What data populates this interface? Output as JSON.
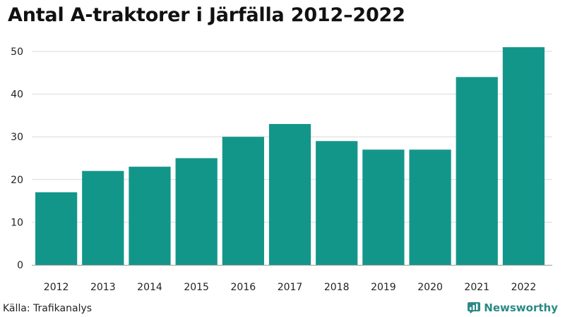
{
  "title": "Antal A-traktorer i Järfälla 2012–2022",
  "source": "Källa: Trafikanalys",
  "brand": "Newsworthy",
  "colors": {
    "bar": "#13968a",
    "grid": "#d9d9d9",
    "axis": "#9a9a9a",
    "brand": "#2a8a84"
  },
  "chart_data": {
    "type": "bar",
    "categories": [
      "2012",
      "2013",
      "2014",
      "2015",
      "2016",
      "2017",
      "2018",
      "2019",
      "2020",
      "2021",
      "2022"
    ],
    "values": [
      17,
      22,
      23,
      25,
      30,
      33,
      29,
      27,
      27,
      44,
      51
    ],
    "title": "Antal A-traktorer i Järfälla 2012–2022",
    "xlabel": "",
    "ylabel": "",
    "ylim": [
      0,
      50
    ],
    "yticks": [
      0,
      10,
      20,
      30,
      40,
      50
    ],
    "grid": true,
    "legend": "none"
  }
}
